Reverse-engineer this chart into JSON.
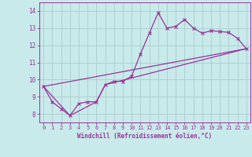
{
  "xlabel": "Windchill (Refroidissement éolien,°C)",
  "background_color": "#c8eaea",
  "grid_color": "#aacccc",
  "line_color": "#993399",
  "xlim": [
    -0.5,
    23.5
  ],
  "ylim": [
    7.5,
    14.5
  ],
  "xticks": [
    0,
    1,
    2,
    3,
    4,
    5,
    6,
    7,
    8,
    9,
    10,
    11,
    12,
    13,
    14,
    15,
    16,
    17,
    18,
    19,
    20,
    21,
    22,
    23
  ],
  "yticks": [
    8,
    9,
    10,
    11,
    12,
    13,
    14
  ],
  "line1_x": [
    0,
    1,
    2,
    3,
    4,
    5,
    6,
    7,
    8,
    9,
    10,
    11,
    12,
    13,
    14,
    15,
    16,
    17,
    18,
    19,
    20,
    21,
    22,
    23
  ],
  "line1_y": [
    9.6,
    8.7,
    8.3,
    7.9,
    8.6,
    8.7,
    8.7,
    9.7,
    9.9,
    9.9,
    10.2,
    11.5,
    12.7,
    13.9,
    13.0,
    13.1,
    13.5,
    13.0,
    12.7,
    12.85,
    12.8,
    12.75,
    12.4,
    11.8
  ],
  "line2_x": [
    0,
    3,
    6,
    7,
    23
  ],
  "line2_y": [
    9.6,
    7.9,
    8.7,
    9.7,
    11.8
  ],
  "line3_x": [
    0,
    23
  ],
  "line3_y": [
    9.6,
    11.8
  ]
}
